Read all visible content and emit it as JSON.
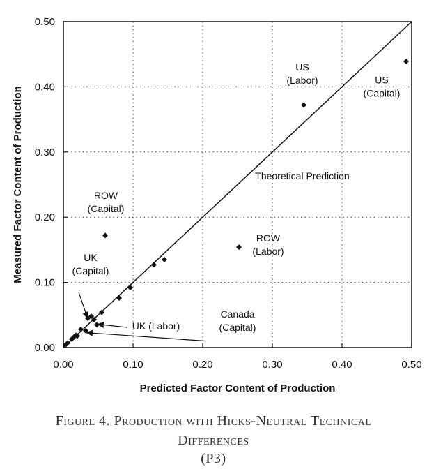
{
  "chart_data": {
    "type": "scatter",
    "xlabel": "Predicted Factor Content of Production",
    "ylabel": "Measured Factor Content of Production",
    "xlim": [
      0,
      0.5
    ],
    "ylim": [
      0,
      0.5
    ],
    "x_ticks": [
      "0.00",
      "0.10",
      "0.20",
      "0.30",
      "0.40",
      "0.50"
    ],
    "y_ticks": [
      "0.00",
      "0.10",
      "0.20",
      "0.30",
      "0.40",
      "0.50"
    ],
    "grid": "dotted",
    "reference_line": {
      "label": "Theoretical Prediction",
      "from": [
        0,
        0
      ],
      "to": [
        0.5,
        0.5
      ]
    },
    "points": [
      {
        "x": 0.003,
        "y": 0.004
      },
      {
        "x": 0.006,
        "y": 0.007
      },
      {
        "x": 0.012,
        "y": 0.013
      },
      {
        "x": 0.015,
        "y": 0.016
      },
      {
        "x": 0.018,
        "y": 0.019
      },
      {
        "x": 0.02,
        "y": 0.018
      },
      {
        "x": 0.025,
        "y": 0.028
      },
      {
        "x": 0.032,
        "y": 0.026
      },
      {
        "x": 0.035,
        "y": 0.045
      },
      {
        "x": 0.04,
        "y": 0.048
      },
      {
        "x": 0.044,
        "y": 0.043
      },
      {
        "x": 0.048,
        "y": 0.035
      },
      {
        "x": 0.055,
        "y": 0.054
      },
      {
        "x": 0.06,
        "y": 0.172
      },
      {
        "x": 0.08,
        "y": 0.076
      },
      {
        "x": 0.096,
        "y": 0.092
      },
      {
        "x": 0.13,
        "y": 0.127
      },
      {
        "x": 0.145,
        "y": 0.135
      },
      {
        "x": 0.252,
        "y": 0.154
      },
      {
        "x": 0.345,
        "y": 0.372
      },
      {
        "x": 0.492,
        "y": 0.439
      }
    ],
    "annotations": [
      {
        "lines": [
          "US",
          "(Labor)"
        ],
        "x": 0.343,
        "y": 0.425
      },
      {
        "lines": [
          "US",
          "(Capital)"
        ],
        "x": 0.457,
        "y": 0.405
      },
      {
        "lines": [
          "Theoretical Prediction"
        ],
        "x": 0.343,
        "y": 0.258
      },
      {
        "lines": [
          "ROW",
          "(Capital)"
        ],
        "x": 0.061,
        "y": 0.228
      },
      {
        "lines": [
          "ROW",
          "(Labor)"
        ],
        "x": 0.294,
        "y": 0.163
      },
      {
        "lines": [
          "UK",
          "(Capital)"
        ],
        "x": 0.039,
        "y": 0.133
      },
      {
        "lines": [
          "UK (Labor)"
        ],
        "x": 0.133,
        "y": 0.028
      },
      {
        "lines": [
          "Canada",
          "(Capital)"
        ],
        "x": 0.25,
        "y": 0.046
      }
    ],
    "arrows": [
      {
        "from": [
          0.022,
          0.085
        ],
        "to": [
          0.035,
          0.044
        ]
      },
      {
        "from": [
          0.092,
          0.031
        ],
        "to": [
          0.048,
          0.036
        ]
      },
      {
        "from": [
          0.205,
          0.01
        ],
        "to": [
          0.032,
          0.023
        ]
      }
    ]
  },
  "caption": {
    "line1": "Figure 4.  Production with Hicks-Neutral Technical",
    "line2": "Differences",
    "line3": "(P3)"
  }
}
